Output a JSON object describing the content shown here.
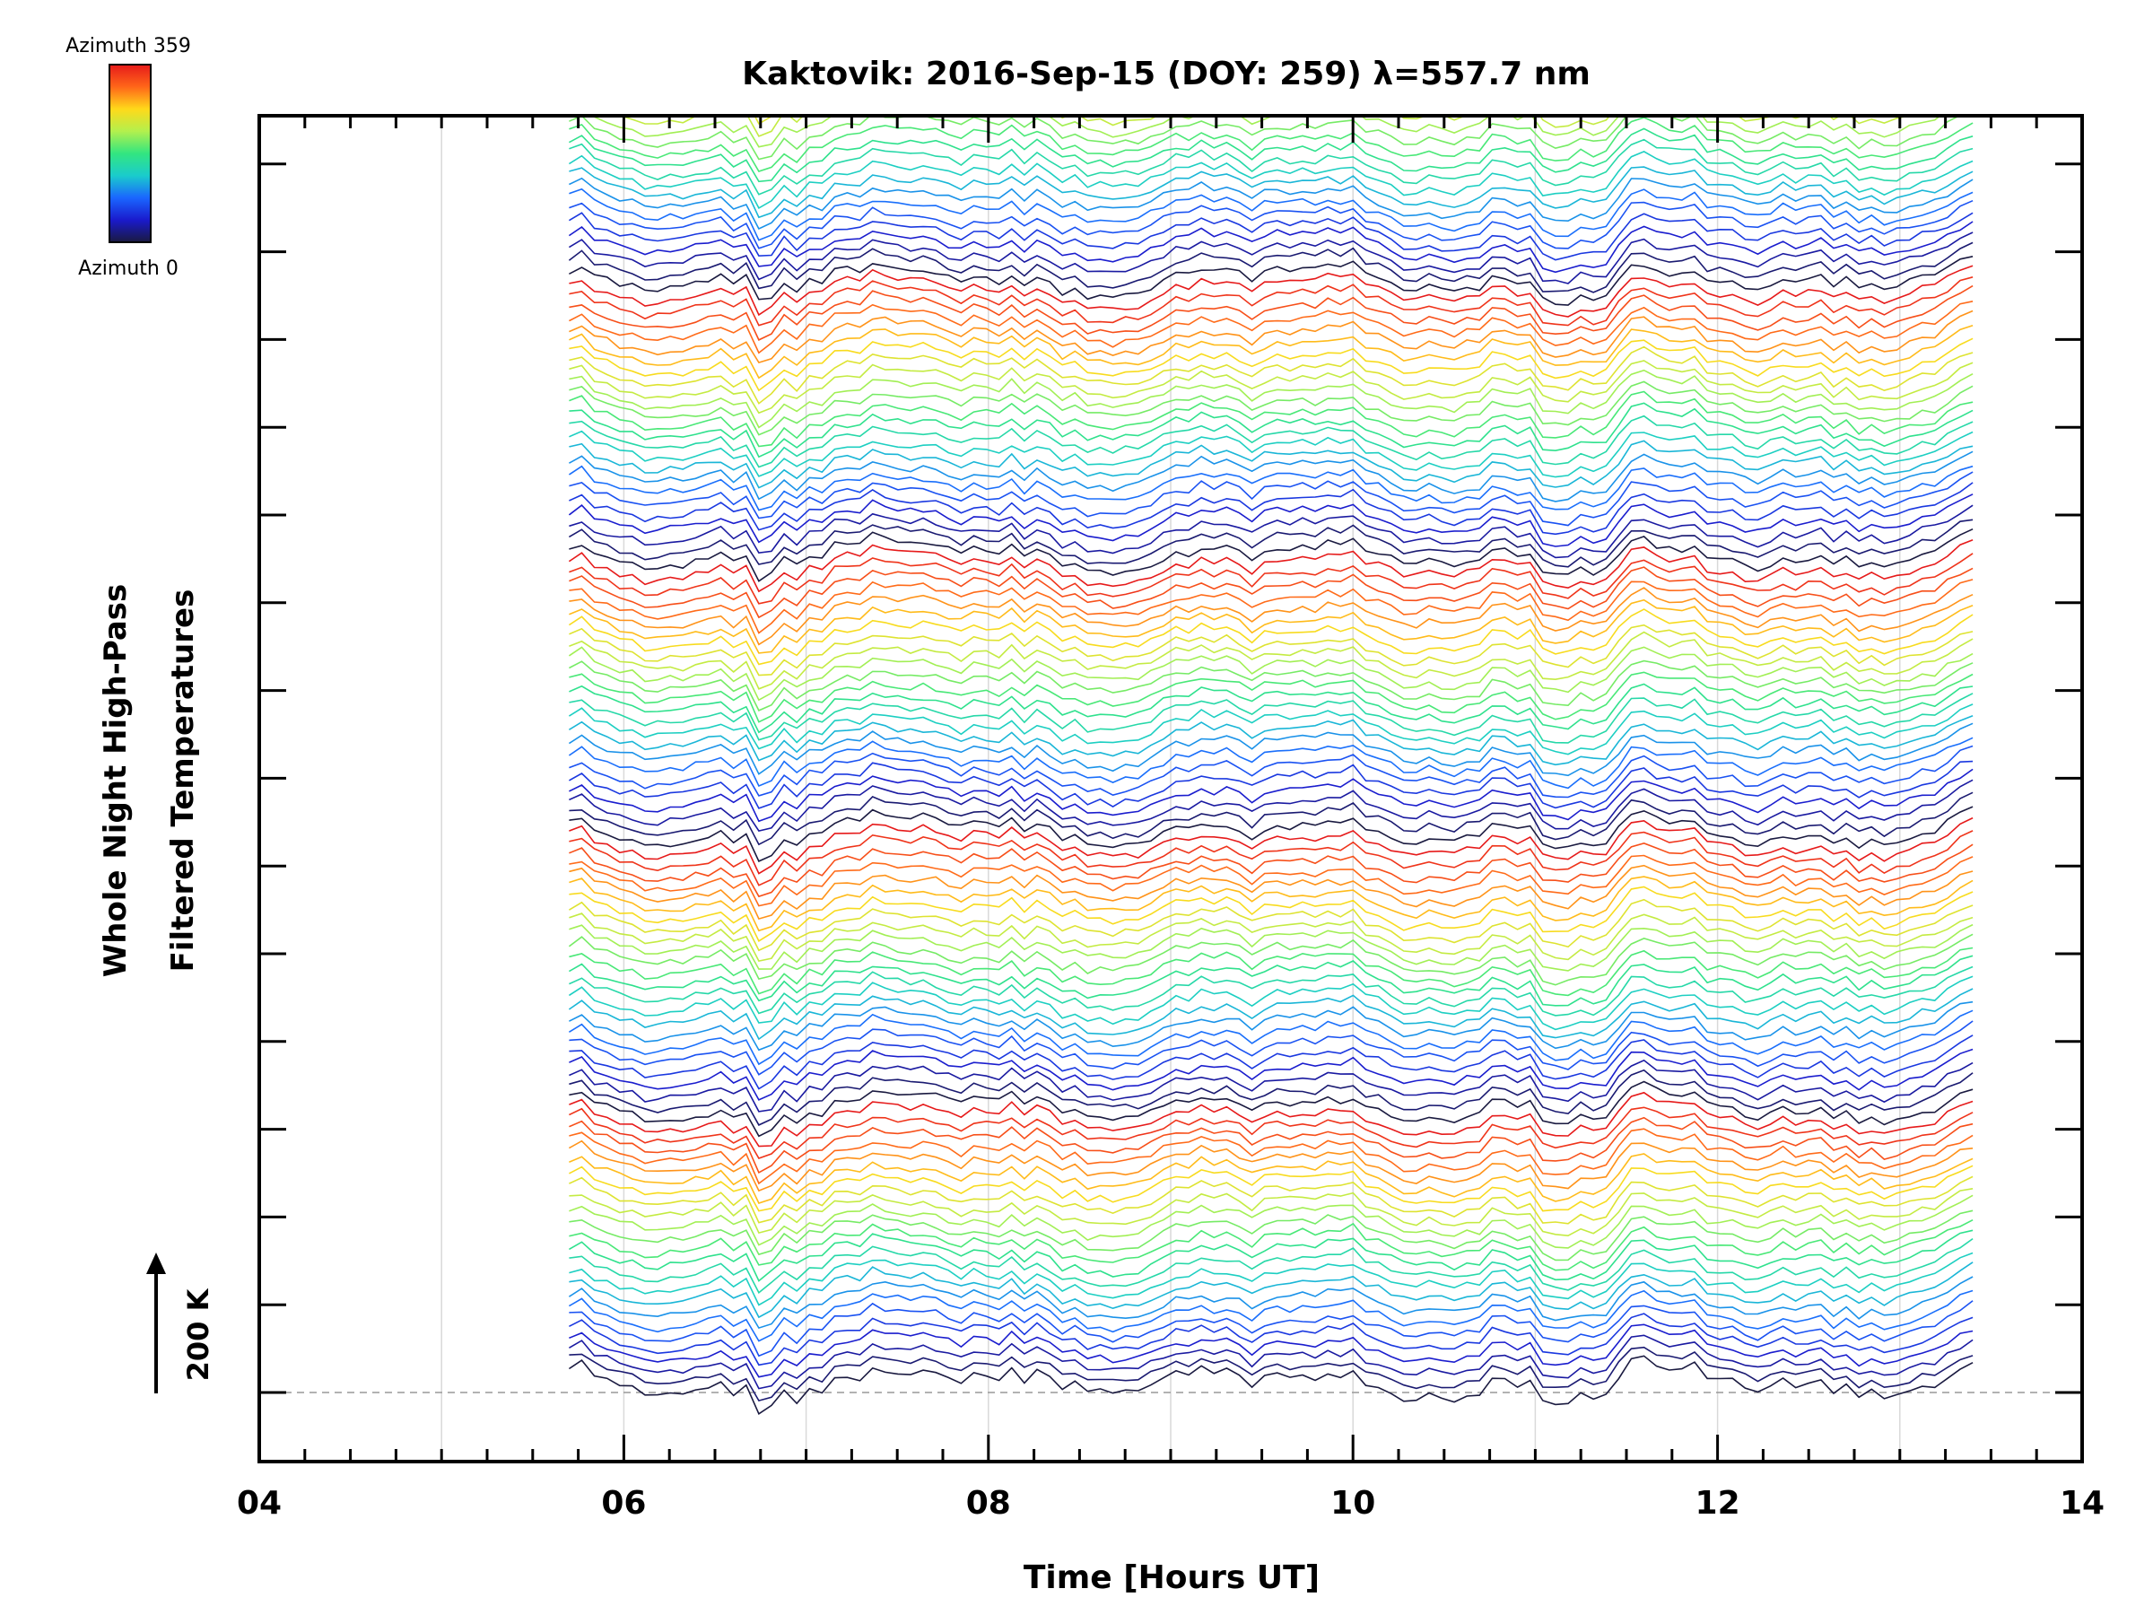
{
  "chart_data": {
    "type": "line",
    "title": "Kaktovik: 2016-Sep-15 (DOY: 259) λ=557.7 nm",
    "xlabel": "Time [Hours UT]",
    "ylabel_line1": "Whole Night High-Pass",
    "ylabel_line2": "Filtered Temperatures",
    "scale_label": "200 K",
    "xlim": [
      4,
      14
    ],
    "x_ticks": [
      "04",
      "06",
      "08",
      "10",
      "12",
      "14"
    ],
    "x_tick_values": [
      4,
      6,
      8,
      10,
      12,
      14
    ],
    "x_range_data": [
      5.7,
      13.4
    ],
    "series_count": 120,
    "series_note": "stacked azimuth traces (0 to 359 deg), each offset vertically; colour encodes azimuth",
    "grid": true,
    "legend": {
      "type": "colorbar",
      "top_label": "Azimuth 359",
      "bottom_label": "Azimuth 0",
      "colors": [
        "#1a1a40",
        "#1a1acc",
        "#1a66ff",
        "#1acccc",
        "#33e680",
        "#b3f04d",
        "#ffd91a",
        "#ff6619",
        "#e61a1a"
      ]
    },
    "colors": {
      "axis": "#000000",
      "grid": "#d9d9d9",
      "baseline": "#999999"
    }
  }
}
